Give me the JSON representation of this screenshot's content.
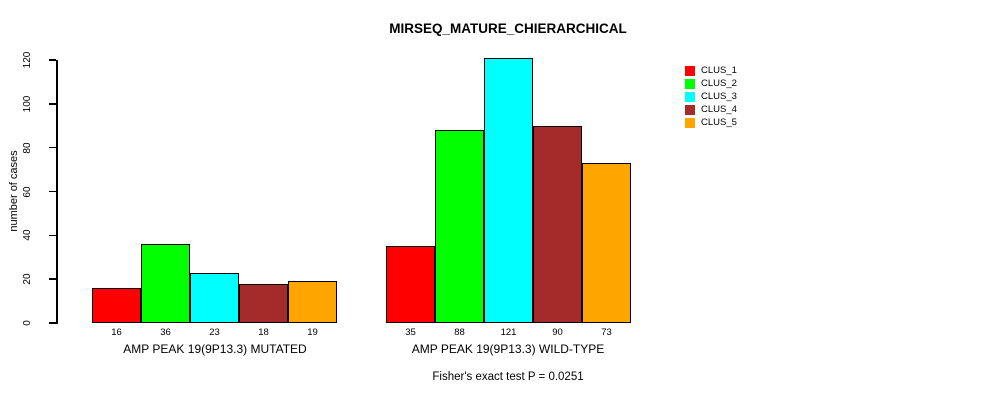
{
  "title": "MIRSEQ_MATURE_CHIERARCHICAL",
  "caption": "Fisher's exact test P = 0.0251",
  "chart_data": {
    "type": "bar",
    "title": "MIRSEQ_MATURE_CHIERARCHICAL",
    "ylabel": "number of cases",
    "xlabel": "",
    "ylim": [
      0,
      120
    ],
    "yticks": [
      0,
      20,
      40,
      60,
      80,
      100,
      120
    ],
    "grid": false,
    "legend_position": "right",
    "groups": [
      "AMP PEAK 19(9P13.3) MUTATED",
      "AMP PEAK 19(9P13.3) WILD-TYPE"
    ],
    "series": [
      {
        "name": "CLUS_1",
        "color": "#FF0000",
        "values": [
          16,
          35
        ]
      },
      {
        "name": "CLUS_2",
        "color": "#00FF00",
        "values": [
          36,
          88
        ]
      },
      {
        "name": "CLUS_3",
        "color": "#00FFFF",
        "values": [
          23,
          121
        ]
      },
      {
        "name": "CLUS_4",
        "color": "#A52A2A",
        "values": [
          18,
          90
        ]
      },
      {
        "name": "CLUS_5",
        "color": "#FFA500",
        "values": [
          19,
          73
        ]
      }
    ],
    "annotation": "Fisher's exact test P = 0.0251"
  }
}
